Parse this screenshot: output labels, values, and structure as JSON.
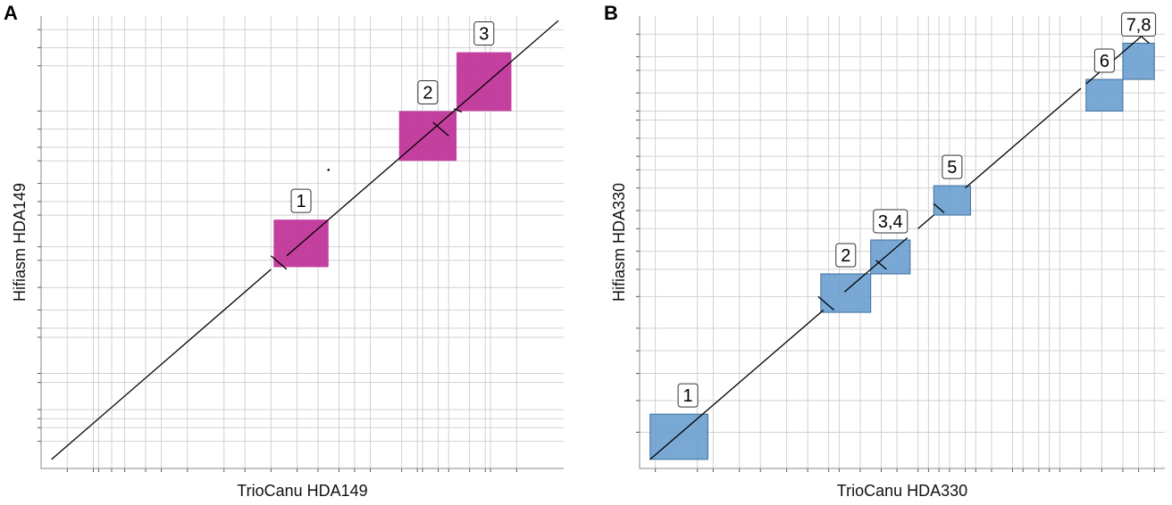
{
  "chart_data": [
    {
      "type": "scatter",
      "panel": "A",
      "title": "",
      "xlabel": "TrioCanu HDA149",
      "ylabel": "Hifiasm HDA149",
      "xlim": [
        0,
        100
      ],
      "ylim": [
        0,
        100
      ],
      "x_breaks": [
        5,
        10,
        11,
        13.5,
        16,
        20,
        23,
        28,
        35,
        39,
        44,
        49,
        53,
        57,
        60,
        63,
        69,
        72,
        73,
        76,
        78,
        82,
        85,
        86,
        91
      ],
      "y_breaks": [
        6,
        9,
        11,
        13,
        19,
        21,
        29,
        31,
        35,
        40,
        46,
        49,
        56,
        59,
        63,
        68,
        71,
        75,
        79,
        89,
        93,
        97
      ],
      "alignment_segments": [
        {
          "x": [
            2,
            44
          ],
          "y": [
            2,
            44
          ]
        },
        {
          "x": [
            47,
            55
          ],
          "y": [
            47,
            55
          ]
        },
        {
          "x": [
            55,
            68
          ],
          "y": [
            55,
            68
          ]
        },
        {
          "x": [
            68,
            73
          ],
          "y": [
            68,
            73
          ]
        },
        {
          "x": [
            73,
            77
          ],
          "y": [
            73,
            77
          ]
        },
        {
          "x": [
            77,
            81
          ],
          "y": [
            77,
            81
          ]
        },
        {
          "x": [
            81,
            99
          ],
          "y": [
            81,
            99
          ]
        }
      ],
      "inversions": [
        {
          "x": [
            44,
            47
          ],
          "y": [
            47,
            44
          ]
        },
        {
          "x": [
            75,
            78
          ],
          "y": [
            76.5,
            73.5
          ]
        },
        {
          "x": [
            79,
            80.5
          ],
          "y": [
            79.5,
            78.8
          ]
        }
      ],
      "points": [
        {
          "x": 55,
          "y": 66
        }
      ],
      "regions": [
        {
          "label": "1",
          "x": [
            44.5,
            55
          ],
          "y": [
            44.5,
            55
          ]
        },
        {
          "label": "2",
          "x": [
            68.5,
            79.5
          ],
          "y": [
            68,
            79
          ]
        },
        {
          "label": "3",
          "x": [
            79.5,
            90
          ],
          "y": [
            79,
            92
          ]
        }
      ],
      "region_color": "#c0369a"
    },
    {
      "type": "scatter",
      "panel": "B",
      "title": "",
      "xlabel": "TrioCanu HDA330",
      "ylabel": "Hifiasm HDA330",
      "xlim": [
        0,
        100
      ],
      "ylim": [
        0,
        100
      ],
      "x_breaks": [
        3,
        11,
        14,
        19,
        23,
        28,
        32,
        36,
        38,
        42,
        46,
        49,
        53,
        55,
        57,
        59,
        62,
        64,
        67,
        71,
        73,
        76,
        78,
        80,
        84,
        88,
        92,
        95,
        98
      ],
      "y_breaks": [
        8,
        15,
        21,
        26,
        31,
        38,
        44,
        48,
        53,
        57,
        62,
        66,
        69,
        73,
        77,
        79,
        83,
        88,
        91,
        96
      ],
      "alignment_segments": [
        {
          "x": [
            2,
            35
          ],
          "y": [
            2,
            35
          ]
        },
        {
          "x": [
            39,
            51
          ],
          "y": [
            39,
            51
          ]
        },
        {
          "x": [
            53,
            56
          ],
          "y": [
            53,
            56
          ]
        },
        {
          "x": [
            62,
            65
          ],
          "y": [
            62,
            65
          ]
        },
        {
          "x": [
            65,
            84
          ],
          "y": [
            65,
            84
          ]
        },
        {
          "x": [
            85,
            91
          ],
          "y": [
            85,
            91
          ]
        },
        {
          "x": [
            91,
            96
          ],
          "y": [
            91,
            96
          ]
        }
      ],
      "inversions": [
        {
          "x": [
            34,
            37
          ],
          "y": [
            38,
            35
          ]
        },
        {
          "x": [
            45,
            47
          ],
          "y": [
            46,
            44
          ]
        },
        {
          "x": [
            56,
            58
          ],
          "y": [
            58.5,
            56.5
          ]
        },
        {
          "x": [
            93,
            97
          ],
          "y": [
            98,
            94
          ]
        }
      ],
      "points": [],
      "regions": [
        {
          "label": "1",
          "x": [
            2,
            13
          ],
          "y": [
            2,
            12
          ]
        },
        {
          "label": "2",
          "x": [
            34.5,
            44
          ],
          "y": [
            34.5,
            43
          ]
        },
        {
          "label": "3,4",
          "x": [
            44,
            51.5
          ],
          "y": [
            43,
            50.5
          ]
        },
        {
          "label": "5",
          "x": [
            56,
            63
          ],
          "y": [
            56,
            62.5
          ]
        },
        {
          "label": "6",
          "x": [
            85,
            92
          ],
          "y": [
            79,
            86
          ]
        },
        {
          "label": "7,8",
          "x": [
            92,
            98
          ],
          "y": [
            86,
            94
          ]
        }
      ],
      "region_color": "#6a9fcf"
    }
  ]
}
